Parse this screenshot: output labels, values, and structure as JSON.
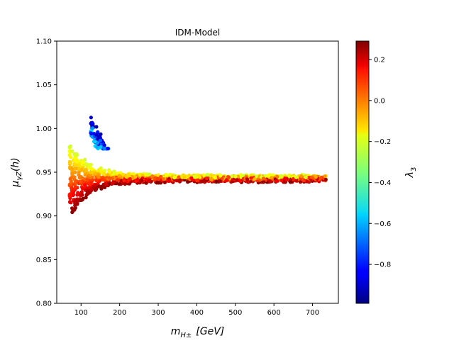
{
  "chart_data": {
    "type": "scatter",
    "title": "IDM-Model",
    "xlabel_main": "m",
    "xlabel_sub": "H±",
    "xlabel_unit": "[GeV]",
    "ylabel_main": "μ",
    "ylabel_sub": "γZ",
    "ylabel_arg": "(h)",
    "xlim": [
      37,
      767
    ],
    "ylim": [
      0.8,
      1.1
    ],
    "x_ticks": [
      100,
      200,
      300,
      400,
      500,
      600,
      700
    ],
    "x_tick_labels": [
      "100",
      "200",
      "300",
      "400",
      "500",
      "600",
      "700"
    ],
    "y_ticks": [
      0.8,
      0.85,
      0.9,
      0.95,
      1.0,
      1.05,
      1.1
    ],
    "y_tick_labels": [
      "0.80",
      "0.85",
      "0.90",
      "0.95",
      "1.00",
      "1.05",
      "1.10"
    ],
    "colorbar": {
      "label_main": "λ",
      "label_sub": "3",
      "range": [
        -0.99,
        0.29
      ],
      "colormap": "jet",
      "ticks": [
        -0.8,
        -0.6,
        -0.4,
        -0.2,
        0.0,
        0.2
      ],
      "tick_labels": [
        "−0.8",
        "−0.6",
        "−0.4",
        "−0.2",
        "0.0",
        "0.2"
      ]
    },
    "clusters": [
      {
        "name": "blue-branch",
        "x_range": [
          125,
          172
        ],
        "y_range": [
          0.977,
          1.017
        ],
        "color_value_range": [
          -0.95,
          -0.55
        ]
      },
      {
        "name": "main-band",
        "x_range": [
          70,
          735
        ],
        "y_range": [
          0.898,
          0.979
        ],
        "asymptote": 0.943,
        "color_value_range": [
          -0.25,
          0.29
        ]
      }
    ]
  }
}
